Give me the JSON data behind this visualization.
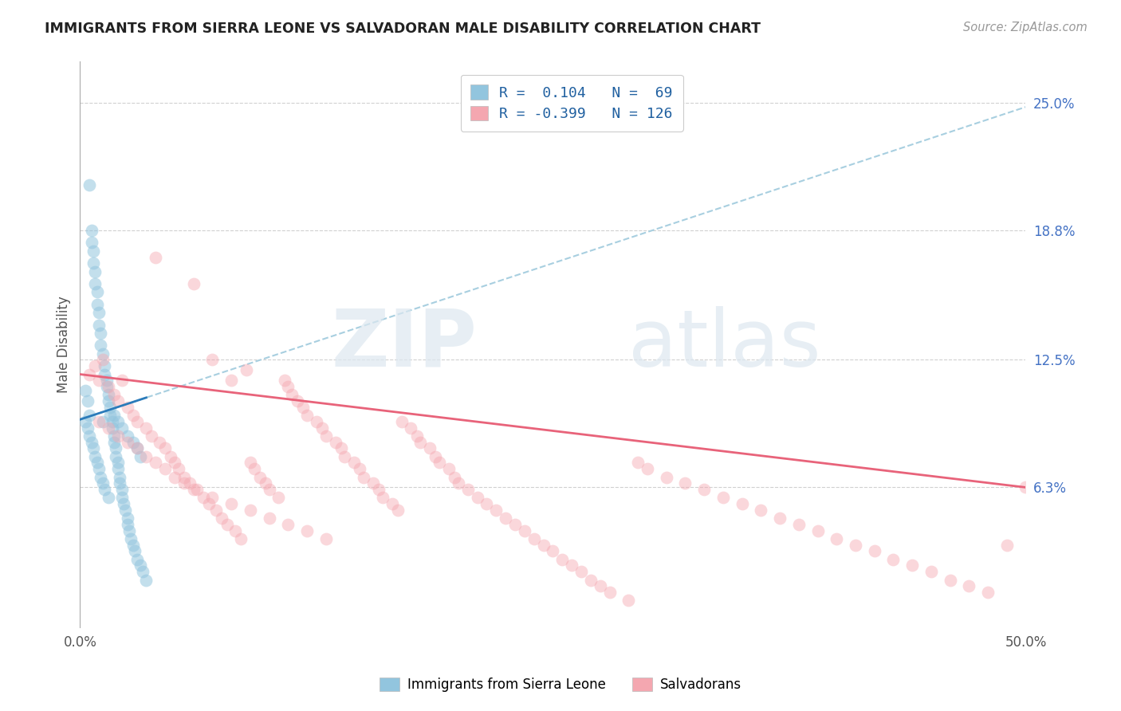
{
  "title": "IMMIGRANTS FROM SIERRA LEONE VS SALVADORAN MALE DISABILITY CORRELATION CHART",
  "source": "Source: ZipAtlas.com",
  "ylabel": "Male Disability",
  "xlim": [
    0.0,
    0.5
  ],
  "ylim": [
    -0.005,
    0.27
  ],
  "y_tick_labels_right": [
    "25.0%",
    "18.8%",
    "12.5%",
    "6.3%"
  ],
  "y_tick_positions_right": [
    0.25,
    0.188,
    0.125,
    0.063
  ],
  "legend_blue_label": "R =  0.104   N =  69",
  "legend_pink_label": "R = -0.399   N = 126",
  "blue_color": "#92C5DE",
  "pink_color": "#F4A7B0",
  "blue_line_color": "#2b7bba",
  "pink_line_color": "#e8637a",
  "dashed_line_color": "#a8cfe0",
  "watermark_zip": "ZIP",
  "watermark_atlas": "atlas",
  "blue_scatter_x": [
    0.003,
    0.004,
    0.005,
    0.005,
    0.006,
    0.006,
    0.007,
    0.007,
    0.008,
    0.008,
    0.009,
    0.009,
    0.01,
    0.01,
    0.011,
    0.011,
    0.012,
    0.012,
    0.013,
    0.013,
    0.014,
    0.014,
    0.015,
    0.015,
    0.016,
    0.016,
    0.017,
    0.017,
    0.018,
    0.018,
    0.019,
    0.019,
    0.02,
    0.02,
    0.021,
    0.021,
    0.022,
    0.022,
    0.023,
    0.024,
    0.025,
    0.025,
    0.026,
    0.027,
    0.028,
    0.029,
    0.03,
    0.032,
    0.033,
    0.035,
    0.003,
    0.004,
    0.005,
    0.006,
    0.007,
    0.008,
    0.009,
    0.01,
    0.011,
    0.012,
    0.013,
    0.015,
    0.018,
    0.02,
    0.022,
    0.025,
    0.028,
    0.03,
    0.032
  ],
  "blue_scatter_y": [
    0.11,
    0.105,
    0.21,
    0.098,
    0.188,
    0.182,
    0.178,
    0.172,
    0.168,
    0.162,
    0.158,
    0.152,
    0.148,
    0.142,
    0.138,
    0.132,
    0.128,
    0.095,
    0.122,
    0.118,
    0.115,
    0.112,
    0.108,
    0.105,
    0.102,
    0.098,
    0.095,
    0.092,
    0.088,
    0.085,
    0.082,
    0.078,
    0.075,
    0.072,
    0.068,
    0.065,
    0.062,
    0.058,
    0.055,
    0.052,
    0.048,
    0.045,
    0.042,
    0.038,
    0.035,
    0.032,
    0.028,
    0.025,
    0.022,
    0.018,
    0.095,
    0.092,
    0.088,
    0.085,
    0.082,
    0.078,
    0.075,
    0.072,
    0.068,
    0.065,
    0.062,
    0.058,
    0.098,
    0.095,
    0.092,
    0.088,
    0.085,
    0.082,
    0.078
  ],
  "pink_scatter_x": [
    0.005,
    0.008,
    0.01,
    0.012,
    0.015,
    0.018,
    0.02,
    0.022,
    0.025,
    0.028,
    0.03,
    0.035,
    0.038,
    0.04,
    0.042,
    0.045,
    0.048,
    0.05,
    0.052,
    0.055,
    0.058,
    0.06,
    0.062,
    0.065,
    0.068,
    0.07,
    0.072,
    0.075,
    0.078,
    0.08,
    0.082,
    0.085,
    0.088,
    0.09,
    0.092,
    0.095,
    0.098,
    0.1,
    0.105,
    0.108,
    0.11,
    0.112,
    0.115,
    0.118,
    0.12,
    0.125,
    0.128,
    0.13,
    0.135,
    0.138,
    0.14,
    0.145,
    0.148,
    0.15,
    0.155,
    0.158,
    0.16,
    0.165,
    0.168,
    0.17,
    0.175,
    0.178,
    0.18,
    0.185,
    0.188,
    0.19,
    0.195,
    0.198,
    0.2,
    0.205,
    0.21,
    0.215,
    0.22,
    0.225,
    0.23,
    0.235,
    0.24,
    0.245,
    0.25,
    0.255,
    0.26,
    0.265,
    0.27,
    0.275,
    0.28,
    0.29,
    0.295,
    0.3,
    0.31,
    0.32,
    0.33,
    0.34,
    0.35,
    0.36,
    0.37,
    0.38,
    0.39,
    0.4,
    0.41,
    0.42,
    0.43,
    0.44,
    0.45,
    0.46,
    0.47,
    0.48,
    0.49,
    0.5,
    0.01,
    0.015,
    0.02,
    0.025,
    0.03,
    0.035,
    0.04,
    0.045,
    0.05,
    0.055,
    0.06,
    0.07,
    0.08,
    0.09,
    0.1,
    0.11,
    0.12,
    0.13
  ],
  "pink_scatter_y": [
    0.118,
    0.122,
    0.115,
    0.125,
    0.112,
    0.108,
    0.105,
    0.115,
    0.102,
    0.098,
    0.095,
    0.092,
    0.088,
    0.175,
    0.085,
    0.082,
    0.078,
    0.075,
    0.072,
    0.068,
    0.065,
    0.162,
    0.062,
    0.058,
    0.055,
    0.125,
    0.052,
    0.048,
    0.045,
    0.115,
    0.042,
    0.038,
    0.12,
    0.075,
    0.072,
    0.068,
    0.065,
    0.062,
    0.058,
    0.115,
    0.112,
    0.108,
    0.105,
    0.102,
    0.098,
    0.095,
    0.092,
    0.088,
    0.085,
    0.082,
    0.078,
    0.075,
    0.072,
    0.068,
    0.065,
    0.062,
    0.058,
    0.055,
    0.052,
    0.095,
    0.092,
    0.088,
    0.085,
    0.082,
    0.078,
    0.075,
    0.072,
    0.068,
    0.065,
    0.062,
    0.058,
    0.055,
    0.052,
    0.048,
    0.045,
    0.042,
    0.038,
    0.035,
    0.032,
    0.028,
    0.025,
    0.022,
    0.018,
    0.015,
    0.012,
    0.008,
    0.075,
    0.072,
    0.068,
    0.065,
    0.062,
    0.058,
    0.055,
    0.052,
    0.048,
    0.045,
    0.042,
    0.038,
    0.035,
    0.032,
    0.028,
    0.025,
    0.022,
    0.018,
    0.015,
    0.012,
    0.035,
    0.063,
    0.095,
    0.092,
    0.088,
    0.085,
    0.082,
    0.078,
    0.075,
    0.072,
    0.068,
    0.065,
    0.062,
    0.058,
    0.055,
    0.052,
    0.048,
    0.045,
    0.042,
    0.038
  ],
  "blue_R": 0.104,
  "pink_R": -0.399,
  "blue_line_x0": 0.0,
  "blue_line_y0": 0.096,
  "blue_line_x1": 0.5,
  "blue_line_y1": 0.248,
  "pink_line_x0": 0.0,
  "pink_line_y0": 0.118,
  "pink_line_x1": 0.5,
  "pink_line_y1": 0.063
}
